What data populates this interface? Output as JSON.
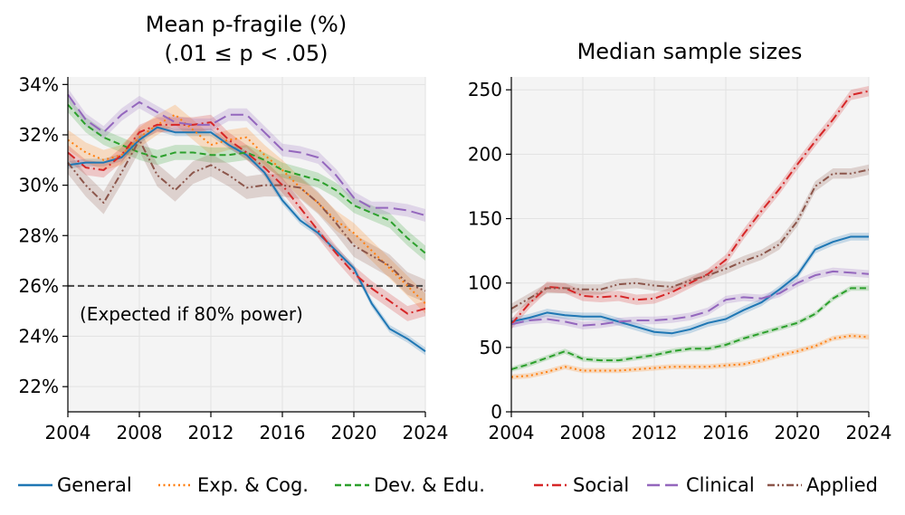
{
  "legend": [
    {
      "name": "General",
      "color": "#1f77b4",
      "dash": "solid"
    },
    {
      "name": "Exp. & Cog.",
      "color": "#ff7f0e",
      "dash": "dotted"
    },
    {
      "name": "Dev. & Edu.",
      "color": "#2ca02c",
      "dash": "dashed"
    },
    {
      "name": "Social",
      "color": "#d62728",
      "dash": "dashdot"
    },
    {
      "name": "Clinical",
      "color": "#9467bd",
      "dash": "longdash"
    },
    {
      "name": "Applied",
      "color": "#8c564b",
      "dash": "dashdotdot"
    }
  ],
  "chart_data": [
    {
      "type": "line",
      "title": "Mean p-fragile (%)",
      "title_line2": "(.01 ≤ p < .05)",
      "xlim": [
        2004,
        2024
      ],
      "ylim": [
        21,
        34.3
      ],
      "xticks": [
        2004,
        2008,
        2012,
        2016,
        2020,
        2024
      ],
      "yticks": [
        22,
        24,
        26,
        28,
        30,
        32,
        34
      ],
      "ytick_labels": [
        "22%",
        "24%",
        "26%",
        "28%",
        "30%",
        "32%",
        "34%"
      ],
      "reference_line": {
        "y": 26,
        "label": "(Expected if 80% power)"
      },
      "x": [
        2004,
        2005,
        2006,
        2007,
        2008,
        2009,
        2010,
        2011,
        2012,
        2013,
        2014,
        2015,
        2016,
        2017,
        2018,
        2019,
        2020,
        2021,
        2022,
        2023,
        2024
      ],
      "series": [
        {
          "name": "General",
          "band": 0.15,
          "values": [
            30.8,
            30.9,
            30.9,
            31.1,
            31.8,
            32.3,
            32.1,
            32.1,
            32.1,
            31.6,
            31.2,
            30.5,
            29.4,
            28.6,
            28.1,
            27.4,
            26.7,
            25.3,
            24.3,
            23.9,
            23.4
          ]
        },
        {
          "name": "Exp. & Cog.",
          "band": 0.4,
          "values": [
            31.8,
            31.3,
            31.0,
            31.2,
            31.9,
            32.4,
            32.8,
            32.2,
            31.6,
            31.8,
            31.9,
            31.2,
            30.6,
            29.9,
            29.3,
            28.6,
            28.1,
            27.4,
            26.7,
            26.0,
            25.3
          ]
        },
        {
          "name": "Dev. & Edu.",
          "band": 0.3,
          "values": [
            33.2,
            32.4,
            31.9,
            31.6,
            31.3,
            31.1,
            31.3,
            31.3,
            31.2,
            31.2,
            31.3,
            31.0,
            30.6,
            30.4,
            30.2,
            29.8,
            29.2,
            28.9,
            28.6,
            27.9,
            27.3
          ]
        },
        {
          "name": "Social",
          "band": 0.3,
          "values": [
            31.3,
            30.7,
            30.6,
            31.2,
            32.1,
            32.4,
            32.4,
            32.4,
            32.5,
            31.8,
            31.3,
            30.7,
            30.0,
            29.1,
            28.2,
            27.3,
            26.5,
            25.9,
            25.4,
            24.9,
            25.1
          ]
        },
        {
          "name": "Clinical",
          "band": 0.25,
          "values": [
            33.6,
            32.6,
            32.1,
            32.8,
            33.3,
            32.9,
            32.5,
            32.4,
            32.4,
            32.8,
            32.8,
            32.1,
            31.4,
            31.3,
            31.1,
            30.4,
            29.5,
            29.1,
            29.1,
            29.0,
            28.8
          ]
        },
        {
          "name": "Applied",
          "band": 0.45,
          "values": [
            30.9,
            30.0,
            29.3,
            30.5,
            31.8,
            30.4,
            29.8,
            30.5,
            30.8,
            30.4,
            29.9,
            30.0,
            30.0,
            29.9,
            29.3,
            28.5,
            27.6,
            27.2,
            26.8,
            26.1,
            25.8
          ]
        }
      ]
    },
    {
      "type": "line",
      "title": "Median sample sizes",
      "xlim": [
        2004,
        2024
      ],
      "ylim": [
        0,
        260
      ],
      "xticks": [
        2004,
        2008,
        2012,
        2016,
        2020,
        2024
      ],
      "yticks": [
        0,
        50,
        100,
        150,
        200,
        250
      ],
      "ytick_labels": [
        "0",
        "50",
        "100",
        "150",
        "200",
        "250"
      ],
      "x": [
        2004,
        2005,
        2006,
        2007,
        2008,
        2009,
        2010,
        2011,
        2012,
        2013,
        2014,
        2015,
        2016,
        2017,
        2018,
        2019,
        2020,
        2021,
        2022,
        2023,
        2024
      ],
      "series": [
        {
          "name": "General",
          "band": 3,
          "values": [
            70,
            73,
            77,
            75,
            74,
            74,
            70,
            66,
            62,
            61,
            64,
            69,
            72,
            79,
            85,
            95,
            106,
            126,
            132,
            136,
            136
          ]
        },
        {
          "name": "Exp. & Cog.",
          "band": 2,
          "values": [
            27,
            28,
            31,
            35,
            32,
            32,
            32,
            33,
            34,
            35,
            35,
            35,
            36,
            37,
            40,
            44,
            47,
            51,
            57,
            59,
            58
          ]
        },
        {
          "name": "Dev. & Edu.",
          "band": 2,
          "values": [
            33,
            37,
            42,
            47,
            41,
            40,
            40,
            42,
            44,
            47,
            49,
            49,
            52,
            57,
            61,
            65,
            69,
            76,
            88,
            96,
            96
          ]
        },
        {
          "name": "Social",
          "band": 4,
          "values": [
            68,
            84,
            97,
            96,
            90,
            89,
            90,
            87,
            88,
            93,
            100,
            107,
            118,
            138,
            156,
            173,
            192,
            210,
            227,
            246,
            249
          ]
        },
        {
          "name": "Clinical",
          "band": 3,
          "values": [
            68,
            71,
            72,
            70,
            67,
            68,
            70,
            71,
            71,
            72,
            74,
            78,
            87,
            89,
            88,
            92,
            100,
            106,
            109,
            108,
            107
          ]
        },
        {
          "name": "Applied",
          "band": 4,
          "values": [
            80,
            88,
            96,
            96,
            95,
            95,
            99,
            100,
            98,
            97,
            102,
            106,
            111,
            117,
            122,
            130,
            148,
            175,
            185,
            185,
            188
          ]
        }
      ]
    }
  ]
}
